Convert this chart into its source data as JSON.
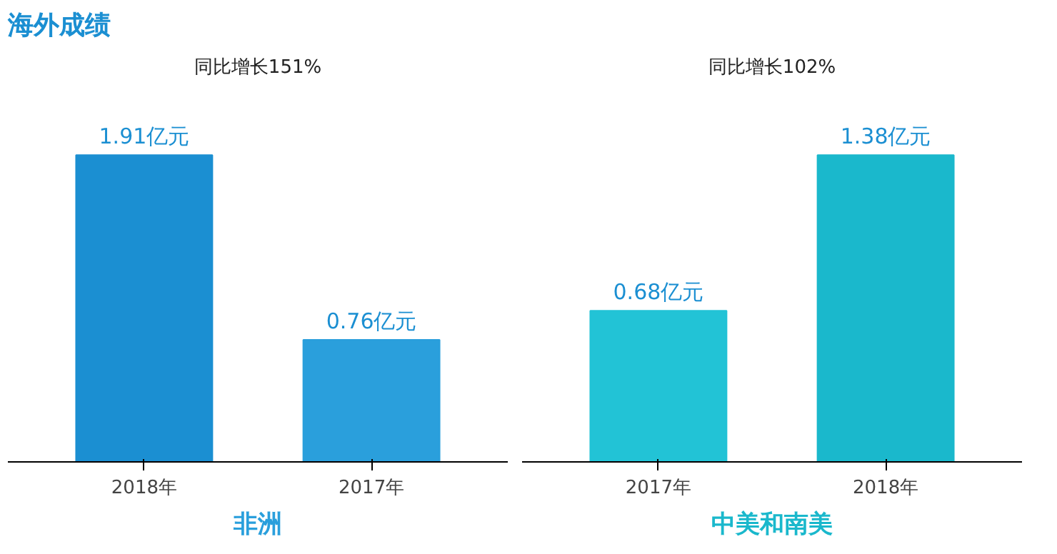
{
  "chart_data": [
    {
      "type": "bar",
      "title": "海外成绩",
      "xlabel": "非洲",
      "categories": [
        "2018年",
        "2017年"
      ],
      "values": [
        1.91,
        0.76
      ],
      "colors": [
        "#1b8fd2",
        "#2a9fdc"
      ],
      "value_labels": [
        "1.91亿元",
        "0.76亿元"
      ],
      "annotations": [
        "同比增长151%"
      ],
      "tick_labels": "x",
      "grid": false
    },
    {
      "type": "bar",
      "xlabel": "中美和南美",
      "categories": [
        "2017年",
        "2018年"
      ],
      "values": [
        0.68,
        1.38
      ],
      "colors": [
        "#22c3d6",
        "#1ab8cc"
      ],
      "value_labels": [
        "0.68亿元",
        "1.38亿元"
      ],
      "annotations": [
        "同比增长102%"
      ],
      "tick_labels": "x",
      "grid": false
    }
  ]
}
